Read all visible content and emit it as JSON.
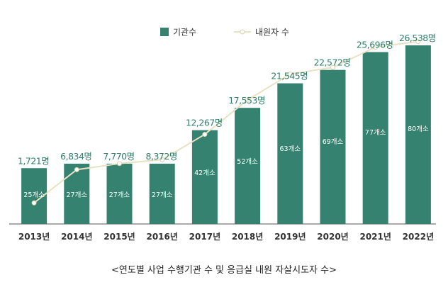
{
  "chart_data": {
    "type": "bar",
    "categories": [
      "2013년",
      "2014년",
      "2015년",
      "2016년",
      "2017년",
      "2018년",
      "2019년",
      "2020년",
      "2021년",
      "2022년"
    ],
    "series": [
      {
        "name": "기관수",
        "type": "bar",
        "color": "#34826f",
        "values": [
          25,
          27,
          27,
          27,
          42,
          52,
          63,
          69,
          77,
          80
        ],
        "labels": [
          "25개소",
          "27개소",
          "27개소",
          "27개소",
          "42개소",
          "52개소",
          "63개소",
          "69개소",
          "77개소",
          "80개소"
        ]
      },
      {
        "name": "내원자 수",
        "type": "line",
        "color": "#e7e2c2",
        "values": [
          1721,
          6834,
          7770,
          8372,
          12267,
          17553,
          21545,
          22572,
          25696,
          26538
        ],
        "labels": [
          "1,721명",
          "6,834명",
          "7,770명",
          "8,372명",
          "12,267명",
          "17,553명",
          "21,545명",
          "22,572명",
          "25,696명",
          "26,538명"
        ]
      }
    ],
    "label_color": "#2f7f6b",
    "legend_position": "top-center",
    "grid": false
  },
  "caption": "<연도별 사업 수행기관 수 및 응급실 내원 자살시도자 수>"
}
